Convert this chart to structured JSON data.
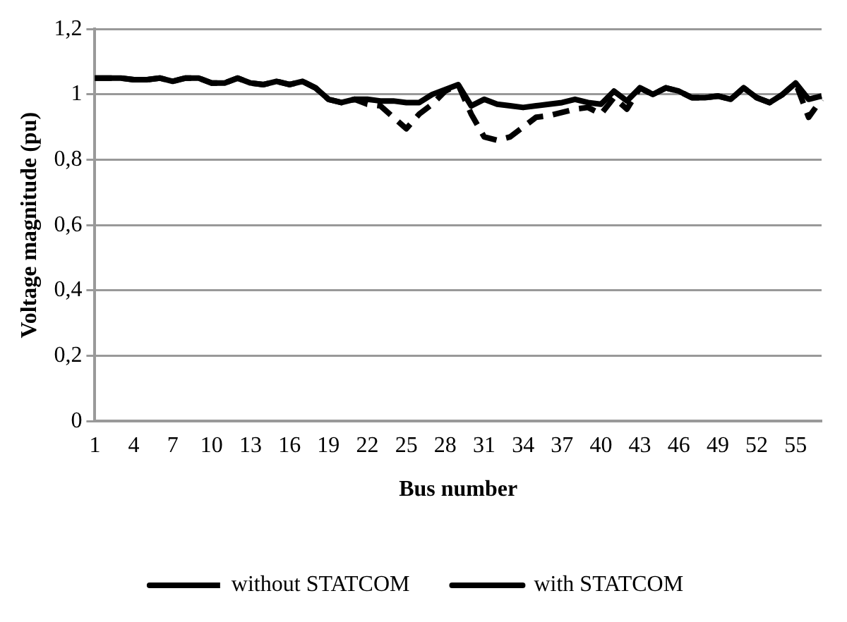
{
  "chart_data": {
    "type": "line",
    "xlabel": "Bus number",
    "ylabel": "Voltage magnitude (pu)",
    "categories": [
      "1",
      null,
      null,
      "4",
      null,
      null,
      "7",
      null,
      null,
      "10",
      null,
      null,
      "13",
      null,
      null,
      "16",
      null,
      null,
      "19",
      null,
      null,
      "22",
      null,
      null,
      "25",
      null,
      null,
      "28",
      null,
      null,
      "31",
      null,
      null,
      "34",
      null,
      null,
      "37",
      null,
      null,
      "40",
      null,
      null,
      "43",
      null,
      null,
      "46",
      null,
      null,
      "49",
      null,
      null,
      "52",
      null,
      null,
      "55",
      null,
      null
    ],
    "series": [
      {
        "name": "without STATCOM",
        "color": "#000000",
        "line_style": "dashed",
        "values": [
          1.05,
          1.05,
          1.05,
          1.045,
          1.045,
          1.05,
          1.04,
          1.05,
          1.05,
          1.035,
          1.035,
          1.05,
          1.035,
          1.03,
          1.04,
          1.03,
          1.04,
          1.02,
          0.985,
          0.975,
          0.985,
          0.97,
          0.965,
          0.93,
          0.895,
          0.94,
          0.97,
          1.01,
          1.03,
          0.94,
          0.87,
          0.86,
          0.87,
          0.9,
          0.93,
          0.935,
          0.945,
          0.955,
          0.96,
          0.94,
          0.99,
          0.955,
          1.02,
          1.0,
          1.02,
          1.01,
          0.99,
          0.99,
          0.995,
          0.985,
          1.02,
          0.99,
          0.975,
          1.0,
          1.035,
          0.93,
          0.985
        ]
      },
      {
        "name": "with STATCOM",
        "color": "#000000",
        "line_style": "solid",
        "values": [
          1.05,
          1.05,
          1.05,
          1.045,
          1.045,
          1.05,
          1.04,
          1.05,
          1.05,
          1.035,
          1.035,
          1.05,
          1.035,
          1.03,
          1.04,
          1.03,
          1.04,
          1.02,
          0.985,
          0.975,
          0.985,
          0.985,
          0.98,
          0.98,
          0.975,
          0.975,
          1.0,
          1.015,
          1.03,
          0.965,
          0.985,
          0.97,
          0.965,
          0.96,
          0.965,
          0.97,
          0.975,
          0.985,
          0.975,
          0.97,
          1.01,
          0.98,
          1.02,
          1.0,
          1.02,
          1.01,
          0.99,
          0.99,
          0.995,
          0.985,
          1.02,
          0.99,
          0.975,
          1.0,
          1.035,
          0.985,
          0.995
        ]
      }
    ],
    "ylim": [
      0,
      1.2
    ],
    "yticks": [
      {
        "value": 0,
        "label": "0"
      },
      {
        "value": 0.2,
        "label": "0,2"
      },
      {
        "value": 0.4,
        "label": "0,4"
      },
      {
        "value": 0.6,
        "label": "0,6"
      },
      {
        "value": 0.8,
        "label": "0,8"
      },
      {
        "value": 1,
        "label": "1"
      },
      {
        "value": 1.2,
        "label": "1,2"
      }
    ],
    "grid": "y",
    "legend": "bottom",
    "marker": "none"
  }
}
